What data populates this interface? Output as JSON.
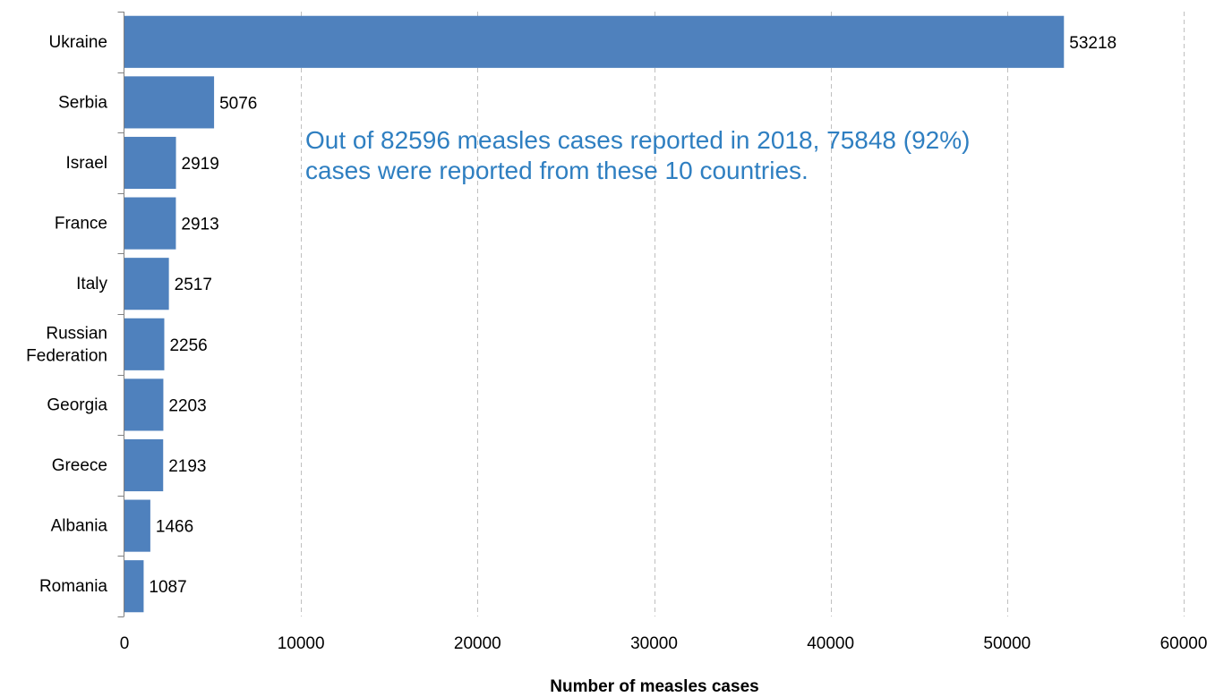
{
  "chart_data": {
    "type": "bar",
    "orientation": "horizontal",
    "categories": [
      "Ukraine",
      "Serbia",
      "Israel",
      "France",
      "Italy",
      "Russian Federation",
      "Georgia",
      "Greece",
      "Albania",
      "Romania"
    ],
    "category_label_lines": [
      [
        "Ukraine"
      ],
      [
        "Serbia"
      ],
      [
        "Israel"
      ],
      [
        "France"
      ],
      [
        "Italy"
      ],
      [
        "Russian",
        "Federation"
      ],
      [
        "Georgia"
      ],
      [
        "Greece"
      ],
      [
        "Albania"
      ],
      [
        "Romania"
      ]
    ],
    "values": [
      53218,
      5076,
      2919,
      2913,
      2517,
      2256,
      2203,
      2193,
      1466,
      1087
    ],
    "xlabel": "Number of measles cases",
    "ylabel": "",
    "xlim": [
      0,
      60000
    ],
    "xticks": [
      0,
      10000,
      20000,
      30000,
      40000,
      50000,
      60000
    ],
    "grid": "vertical dashed",
    "data_labels": true,
    "annotation_lines": [
      "Out of 82596 measles cases reported in 2018, 75848 (92%)",
      "cases were reported from these 10 countries."
    ],
    "colors": {
      "bar": "#4f81bd",
      "annotation": "#2f7fc1",
      "grid": "#bfbfbf",
      "axis": "#808080"
    }
  }
}
